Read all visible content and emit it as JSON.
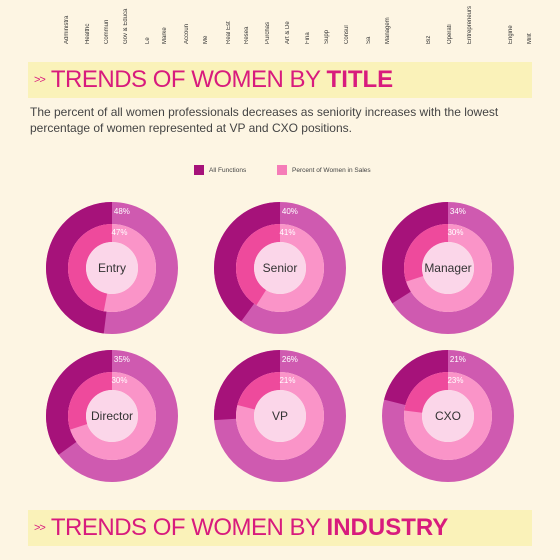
{
  "top_labels": [
    "Administra",
    "Healthc",
    "Commun",
    "Gov & Educa",
    "Le",
    "Marke",
    "Accoun",
    "Me",
    "Real Est",
    "Resea",
    "Purchas",
    "Art & De",
    "Fina",
    "Supp",
    "Consul",
    "Sa",
    "Managem",
    "Biz",
    "Operati",
    "Entrepreneurs",
    "Engine",
    "Milit"
  ],
  "section1": {
    "chevron": ">>",
    "title_light": "TRENDS OF WOMEN BY",
    "title_bold": "TITLE"
  },
  "description": "The percent of all women professionals decreases as seniority increases with the lowest percentage of women represented at VP and CXO positions.",
  "legend": [
    {
      "label": "All Functions",
      "color": "#a6127a"
    },
    {
      "label": "Percent of Women in Sales",
      "color": "#f57cb8"
    }
  ],
  "colors": {
    "outer_value": "#a6127a",
    "outer_rest": "#cf5ab0",
    "inner_value": "#ee4a9c",
    "inner_rest": "#fa94c8",
    "center_bg": "#fbd6e9",
    "accent": "#d81b7d",
    "banner_bg": "#faf2b9",
    "page_bg": "#fdf5e3"
  },
  "chart_data": {
    "type": "donut",
    "series": [
      {
        "name": "All Functions",
        "values": [
          48,
          40,
          34,
          35,
          26,
          21
        ]
      },
      {
        "name": "Percent of Women in Sales",
        "values": [
          47,
          41,
          30,
          30,
          21,
          23
        ]
      }
    ],
    "categories": [
      "Entry",
      "Senior",
      "Manager",
      "Director",
      "VP",
      "CXO"
    ],
    "donuts": [
      {
        "label": "Entry",
        "outer": 48,
        "outer_label": "48%",
        "inner": 47,
        "inner_label": "47%"
      },
      {
        "label": "Senior",
        "outer": 40,
        "outer_label": "40%",
        "inner": 41,
        "inner_label": "41%"
      },
      {
        "label": "Manager",
        "outer": 34,
        "outer_label": "34%",
        "inner": 30,
        "inner_label": "30%"
      },
      {
        "label": "Director",
        "outer": 35,
        "outer_label": "35%",
        "inner": 30,
        "inner_label": "30%"
      },
      {
        "label": "VP",
        "outer": 26,
        "outer_label": "26%",
        "inner": 21,
        "inner_label": "21%"
      },
      {
        "label": "CXO",
        "outer": 21,
        "outer_label": "21%",
        "inner": 23,
        "inner_label": "23%"
      }
    ]
  },
  "section2": {
    "chevron": ">>",
    "title_light": "TRENDS OF WOMEN BY",
    "title_bold": "INDUSTRY"
  }
}
